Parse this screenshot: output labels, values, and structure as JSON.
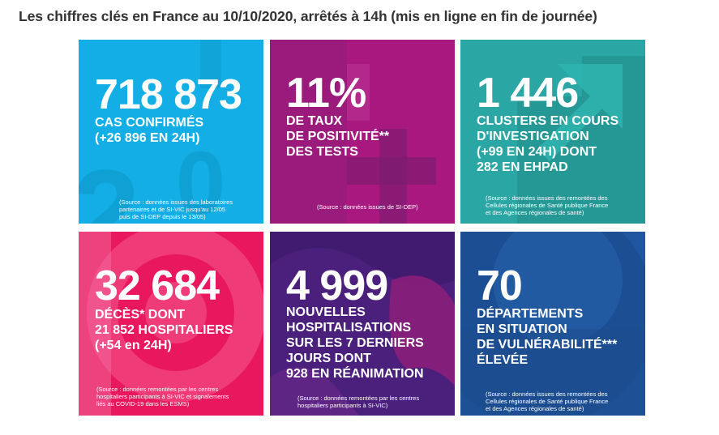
{
  "heading": "Les chiffres clés en France au 10/10/2020, arrêtés à 14h (mis en ligne en fin de journée)",
  "tiles": [
    {
      "value": "718 873",
      "lines": [
        "CAS CONFIRMÉS",
        "(+26 896 EN 24H)"
      ],
      "source": [
        "(Source : données issues des laboratoires",
        "partenaires et de SI-VIC jusqu'au 12/05",
        "puis de SI-DEP depuis le 13/05)"
      ],
      "color": "#12aee5"
    },
    {
      "value": "11%",
      "lines": [
        "DE TAUX",
        "DE POSITIVITÉ**",
        "DES TESTS"
      ],
      "source": [
        "(Source : données issues de SI-DEP)"
      ],
      "color": "#a8187f"
    },
    {
      "value": "1 446",
      "lines": [
        "CLUSTERS EN COURS",
        "D'INVESTIGATION",
        "(+99 EN 24H) DONT",
        "282 EN EHPAD"
      ],
      "source": [
        "(Source : données issues des remontées des",
        "Cellules régionales de Santé publique France",
        "et des Agences régionales de santé)"
      ],
      "color": "#2aa7a5"
    },
    {
      "value": "32 684",
      "lines": [
        "DÉCÈS* DONT",
        "21 852 HOSPITALIERS",
        "(+54 en 24H)"
      ],
      "source": [
        "(Source : données remontées par les centres",
        "hospitaliers participants à SI-VIC et signalements",
        "liés au COVID-19 dans les ESMS)"
      ],
      "color": "#e9175d"
    },
    {
      "value": "4 999",
      "lines": [
        "NOUVELLES",
        "HOSPITALISATIONS",
        "SUR LES 7 DERNIERS",
        "JOURS DONT",
        "928 EN RÉANIMATION"
      ],
      "source": [
        "(Source : données remontées par les centres",
        "hospitaliers participants à SI-VIC)"
      ],
      "color": "#4b1f7c"
    },
    {
      "value": "70",
      "lines": [
        "DÉPARTEMENTS",
        "EN SITUATION",
        "DE VULNÉRABILITÉ***",
        "ÉLEVÉE"
      ],
      "source": [
        "(Source : données issues des remontées des",
        "Cellules régionales de Santé publique France",
        "et des Agences régionales de santé)"
      ],
      "color": "#1e56a0"
    }
  ]
}
